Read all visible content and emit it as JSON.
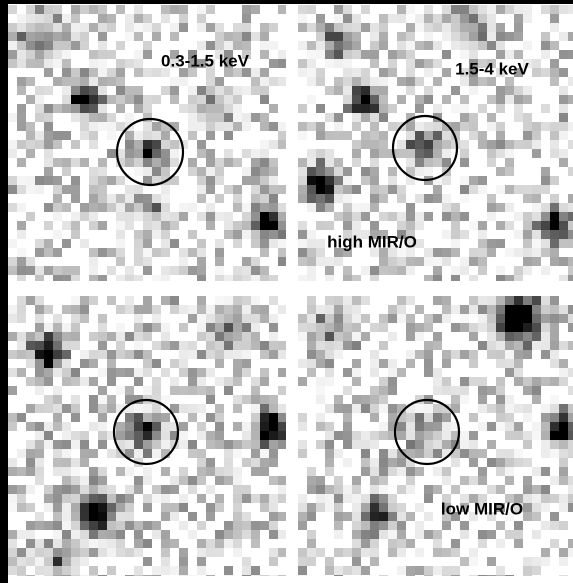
{
  "columns": [
    "0.3-1.5 keV",
    "1.5-4 keV"
  ],
  "rows": [
    "high MIR/O",
    "low MIR/O"
  ]
}
